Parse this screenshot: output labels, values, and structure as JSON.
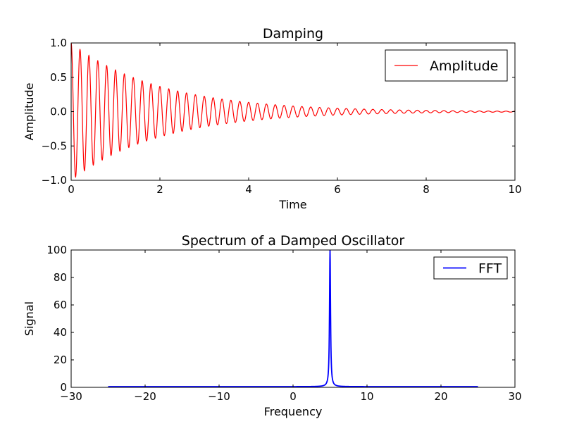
{
  "chart_data": [
    {
      "type": "line",
      "title": "Damping",
      "xlabel": "Time",
      "ylabel": "Amplitude",
      "xlim": [
        0,
        10
      ],
      "ylim": [
        -1.0,
        1.0
      ],
      "xticks": [
        0,
        2,
        4,
        6,
        8,
        10
      ],
      "xtick_labels": [
        "0",
        "2",
        "4",
        "6",
        "8",
        "10"
      ],
      "yticks": [
        -1.0,
        -0.5,
        0.0,
        0.5,
        1.0
      ],
      "ytick_labels": [
        "−1.0",
        "−0.5",
        "0.0",
        "0.5",
        "1.0"
      ],
      "grid": false,
      "legend_position": "top-right",
      "series": [
        {
          "name": "Amplitude",
          "color": "#ff0000",
          "function": "exp(-0.5*t)*cos(2*pi*5*t)",
          "peak_points": [
            [
              0,
              1.0
            ],
            [
              0.1,
              -0.95
            ],
            [
              0.2,
              0.9
            ],
            [
              1.0,
              0.61
            ],
            [
              2.0,
              0.37
            ],
            [
              4.0,
              0.14
            ],
            [
              6.0,
              0.05
            ],
            [
              10.0,
              0.007
            ]
          ]
        }
      ]
    },
    {
      "type": "line",
      "title": "Spectrum of a Damped Oscillator",
      "xlabel": "Frequency",
      "ylabel": "Signal",
      "xlim": [
        -30,
        30
      ],
      "ylim": [
        0,
        100
      ],
      "xticks": [
        -30,
        -20,
        -10,
        0,
        10,
        20,
        30
      ],
      "xtick_labels": [
        "−30",
        "−20",
        "−10",
        "0",
        "10",
        "20",
        "30"
      ],
      "yticks": [
        0,
        20,
        40,
        60,
        80,
        100
      ],
      "ytick_labels": [
        "0",
        "20",
        "40",
        "60",
        "80",
        "100"
      ],
      "grid": false,
      "legend_position": "top-right",
      "series": [
        {
          "name": "FFT",
          "color": "#0000ff",
          "x_range": [
            -25,
            25
          ],
          "baseline": 0.5,
          "peak": {
            "x": 5,
            "y": 100
          }
        }
      ]
    }
  ]
}
